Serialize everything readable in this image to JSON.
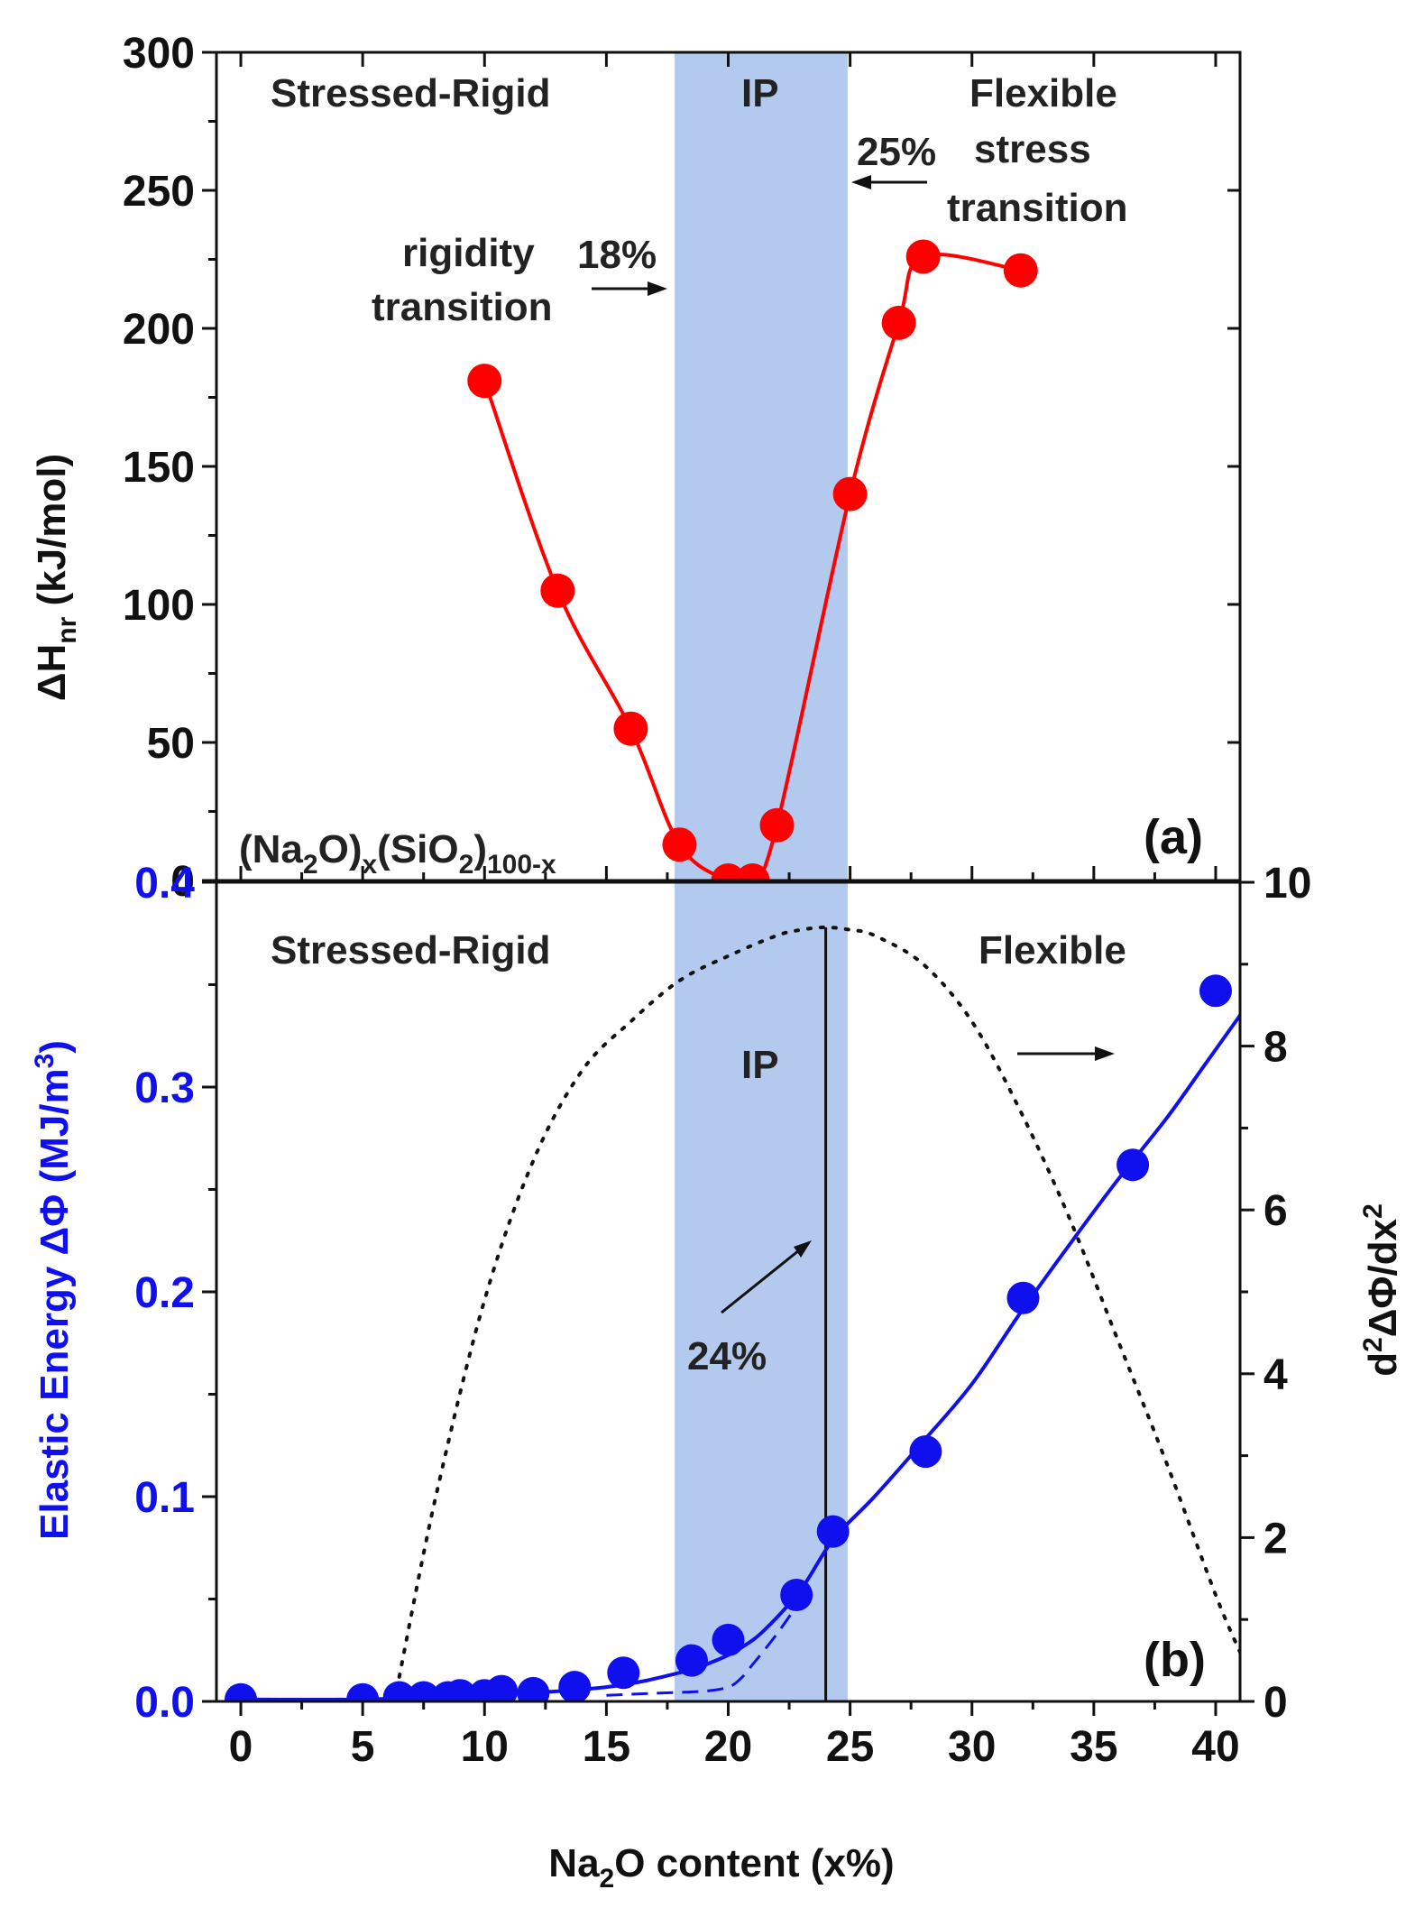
{
  "colors": {
    "panel_a_series": "#ff0000",
    "panel_b_series": "#1010ee",
    "ip_band": "#b3c9ee",
    "axis": "#111111",
    "curvature_curve": "#111111"
  },
  "x_axis": {
    "title_parts": [
      "Na",
      "2",
      "O content (x%)"
    ],
    "range": [
      -1,
      41
    ],
    "ticks": [
      0,
      5,
      10,
      15,
      20,
      25,
      30,
      35,
      40
    ],
    "tick_labels": [
      "0",
      "5",
      "10",
      "15",
      "20",
      "25",
      "30",
      "35",
      "40"
    ]
  },
  "ip_band": {
    "x_from": 17.8,
    "x_to": 24.9
  },
  "panel_a": {
    "label": "(a)",
    "composition": [
      "(Na",
      "2",
      "O)",
      "x",
      "(SiO",
      "2",
      ")",
      "100-x"
    ],
    "y_title": [
      "ΔH",
      "nr",
      " (kJ/mol)"
    ],
    "y_range": [
      0,
      300
    ],
    "y_ticks": [
      0,
      50,
      100,
      150,
      200,
      250,
      300
    ],
    "y_tick_labels": [
      "0",
      "50",
      "100",
      "150",
      "200",
      "250",
      "300"
    ],
    "region_labels": {
      "left": "Stressed-Rigid",
      "middle": "IP",
      "right": "Flexible"
    },
    "rigidity_annotation": {
      "line1": "rigidity",
      "line2": "transition",
      "value": "18%"
    },
    "stress_annotation": {
      "value": "25%",
      "line1": "stress",
      "line2": "transition"
    }
  },
  "panel_b": {
    "label": "(b)",
    "y_title": "Elastic Energy ΔΦ (MJ/m",
    "y_title_sup": "3",
    "y_title_end": ")",
    "y_range": [
      0,
      0.4
    ],
    "y_ticks": [
      0,
      0.1,
      0.2,
      0.3,
      0.4
    ],
    "y_tick_labels": [
      "0.0",
      "0.1",
      "0.2",
      "0.3",
      "0.4"
    ],
    "y2_title": [
      "d",
      "2",
      "ΔΦ/dx",
      "2"
    ],
    "y2_range": [
      0,
      10
    ],
    "y2_ticks": [
      0,
      2,
      4,
      6,
      8,
      10
    ],
    "y2_tick_labels": [
      "0",
      "2",
      "4",
      "6",
      "8",
      "10"
    ],
    "region_labels": {
      "left": "Stressed-Rigid",
      "middle": "IP",
      "right": "Flexible"
    },
    "peak_annotation": "24%",
    "vertical_line_x": 24
  },
  "chart_data": [
    {
      "type": "line",
      "panel": "a",
      "title": "",
      "xlabel": "Na2O content (x%)",
      "ylabel": "ΔHnr (kJ/mol)",
      "ylim": [
        0,
        300
      ],
      "series": [
        {
          "name": "ΔHnr",
          "x": [
            10,
            13,
            16,
            18,
            20,
            21,
            22,
            25,
            27,
            28,
            32
          ],
          "values": [
            181,
            105,
            55,
            13,
            0,
            0,
            20,
            140,
            202,
            226,
            221
          ]
        }
      ]
    },
    {
      "type": "scatter",
      "panel": "b",
      "title": "",
      "xlabel": "Na2O content (x%)",
      "ylabel": "Elastic Energy ΔΦ (MJ/m3)",
      "ylim": [
        0,
        0.4
      ],
      "y2label": "d2ΔΦ/dx2",
      "y2lim": [
        0,
        10
      ],
      "series": [
        {
          "name": "Elastic Energy ΔΦ",
          "x": [
            0,
            5,
            6.5,
            7.5,
            8.5,
            9,
            10,
            10.7,
            12,
            13.7,
            15.7,
            18.5,
            20,
            22.8,
            24.3,
            28.1,
            32.1,
            36.6,
            40
          ],
          "values": [
            0.001,
            0.001,
            0.002,
            0.002,
            0.002,
            0.003,
            0.003,
            0.005,
            0.004,
            0.007,
            0.014,
            0.02,
            0.03,
            0.052,
            0.083,
            0.122,
            0.197,
            0.262,
            0.347
          ]
        },
        {
          "name": "Elastic energy fit (solid)",
          "x": [
            0,
            5,
            10,
            15,
            18,
            19.5,
            20.5,
            21.5,
            23,
            24.3,
            26,
            28,
            30,
            32,
            34,
            36,
            38,
            39.5,
            41
          ],
          "values": [
            0.001,
            0.001,
            0.003,
            0.007,
            0.014,
            0.02,
            0.026,
            0.035,
            0.055,
            0.079,
            0.1,
            0.127,
            0.155,
            0.19,
            0.223,
            0.255,
            0.285,
            0.31,
            0.335
          ]
        },
        {
          "name": "Elastic energy fit (dashed)",
          "x": [
            15,
            17,
            19,
            20,
            20.5,
            21,
            22,
            23
          ],
          "values": [
            0.003,
            0.004,
            0.005,
            0.007,
            0.011,
            0.018,
            0.033,
            0.05
          ]
        },
        {
          "name": "d2ΔΦ/dx2",
          "axis": "right",
          "x": [
            6.5,
            8,
            10,
            12,
            14,
            16,
            18,
            20,
            22,
            23,
            24,
            25,
            26,
            28,
            30,
            32,
            34,
            36,
            38,
            40,
            41
          ],
          "values": [
            0.3,
            2.5,
            4.9,
            6.6,
            7.7,
            8.3,
            8.8,
            9.1,
            9.35,
            9.42,
            9.45,
            9.42,
            9.35,
            9.0,
            8.3,
            7.2,
            5.9,
            4.4,
            2.9,
            1.3,
            0.6
          ]
        }
      ]
    }
  ]
}
